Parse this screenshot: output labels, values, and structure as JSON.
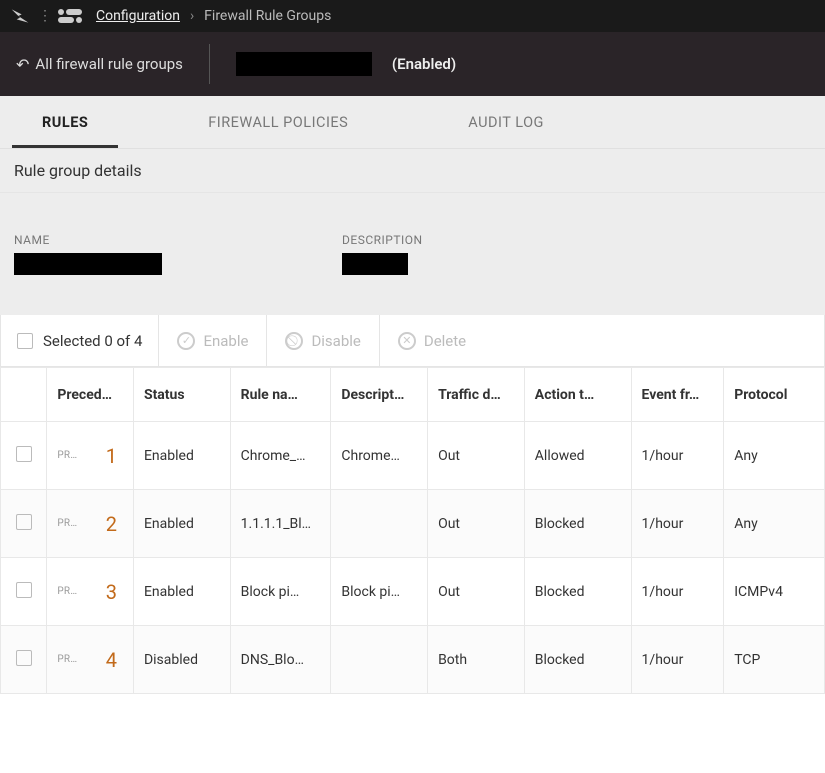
{
  "colors": {
    "topbar_bg": "#1a1a1a",
    "subheader_bg": "#2a2428",
    "panel_bg": "#ededed",
    "border": "#e5e5e5",
    "accent_orange": "#c26a1a",
    "text_muted": "#777777",
    "text_disabled": "#bbbbbb"
  },
  "breadcrumb": {
    "link": "Configuration",
    "sep": "›",
    "current": "Firewall Rule Groups"
  },
  "subheader": {
    "back_label": "All firewall rule groups",
    "status_label": "(Enabled)"
  },
  "tabs": [
    {
      "label": "RULES",
      "active": true
    },
    {
      "label": "FIREWALL POLICIES",
      "active": false
    },
    {
      "label": "AUDIT LOG",
      "active": false
    }
  ],
  "section_title": "Rule group details",
  "details": {
    "name_label": "NAME",
    "description_label": "DESCRIPTION"
  },
  "toolbar": {
    "selected_text": "Selected 0 of 4",
    "enable_label": "Enable",
    "disable_label": "Disable",
    "delete_label": "Delete"
  },
  "rules_table": {
    "columns": {
      "precedence": "Preced…",
      "status": "Status",
      "rule_name": "Rule na…",
      "description": "Descript…",
      "traffic": "Traffic d…",
      "action": "Action t…",
      "event": "Event fr…",
      "protocol": "Protocol"
    },
    "prec_badge": "PR…",
    "rows": [
      {
        "num": "1",
        "status": "Enabled",
        "name": "Chrome_…",
        "desc": "Chrome…",
        "traffic": "Out",
        "action": "Allowed",
        "event": "1/hour",
        "protocol": "Any"
      },
      {
        "num": "2",
        "status": "Enabled",
        "name": "1.1.1.1_Bl…",
        "desc": "",
        "traffic": "Out",
        "action": "Blocked",
        "event": "1/hour",
        "protocol": "Any"
      },
      {
        "num": "3",
        "status": "Enabled",
        "name": "Block pi…",
        "desc": "Block pi…",
        "traffic": "Out",
        "action": "Blocked",
        "event": "1/hour",
        "protocol": "ICMPv4"
      },
      {
        "num": "4",
        "status": "Disabled",
        "name": "DNS_Blo…",
        "desc": "",
        "traffic": "Both",
        "action": "Blocked",
        "event": "1/hour",
        "protocol": "TCP"
      }
    ]
  }
}
